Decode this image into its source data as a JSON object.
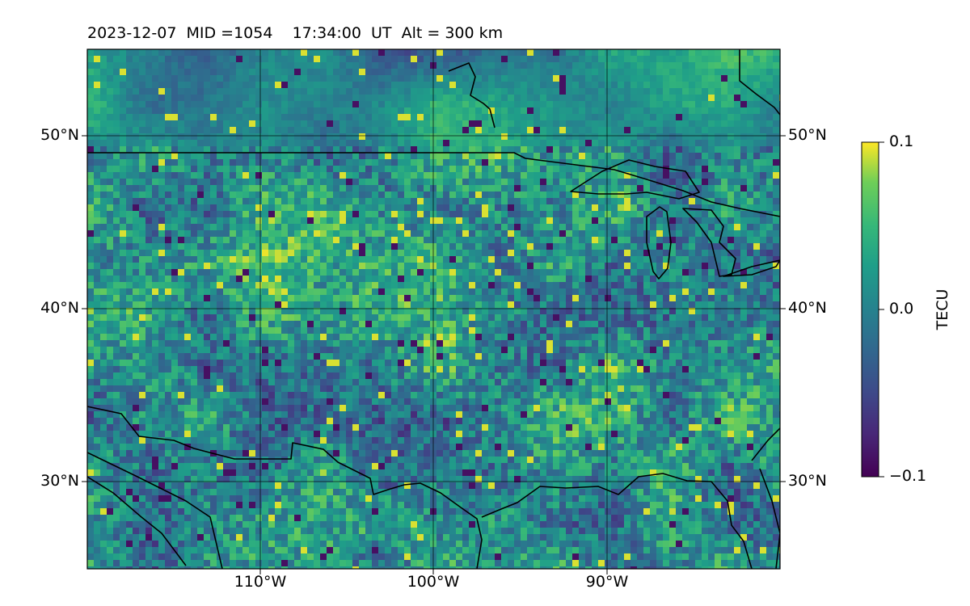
{
  "figure": {
    "title": "2023-12-07  MID =1054    17:34:00  UT  Alt = 300 km"
  },
  "map": {
    "projection": "plate carree",
    "lon_range": [
      -119.9,
      -80
    ],
    "lat_range": [
      25,
      55
    ],
    "lat_ticks": [
      {
        "value": 50,
        "label": "50°N"
      },
      {
        "value": 40,
        "label": "40°N"
      },
      {
        "value": 30,
        "label": "30°N"
      }
    ],
    "lon_ticks": [
      {
        "value": -110,
        "label": "110°W"
      },
      {
        "value": -100,
        "label": "100°W"
      },
      {
        "value": -90,
        "label": "90°W"
      }
    ],
    "gridlines": true,
    "features": [
      "coastline",
      "US–Canada border",
      "US–Mexico border",
      "Great Lakes"
    ]
  },
  "colorbar": {
    "label": "TECU",
    "colormap": "viridis",
    "vmin": -0.1,
    "vmax": 0.1,
    "ticks": [
      {
        "value": 0.1,
        "label": "0.1"
      },
      {
        "value": 0.0,
        "label": "0.0"
      },
      {
        "value": -0.1,
        "label": "−0.1"
      }
    ]
  },
  "colors": {
    "viridis_low": "#440154",
    "viridis_mid": "#21918c",
    "viridis_high": "#fde725",
    "lines": "#000000"
  }
}
